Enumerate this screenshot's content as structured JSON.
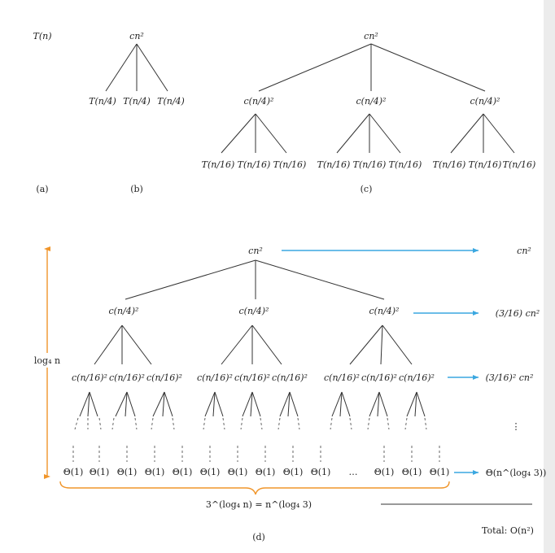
{
  "panel_labels": {
    "a": "(a)",
    "b": "(b)",
    "c": "(c)",
    "d": "(d)"
  },
  "panel_a": {
    "node": "T(n)"
  },
  "panel_b": {
    "root": "cn²",
    "children": [
      "T(n/4)",
      "T(n/4)",
      "T(n/4)"
    ]
  },
  "panel_c": {
    "root": "cn²",
    "level1": [
      "c(n/4)²",
      "c(n/4)²",
      "c(n/4)²"
    ],
    "level2": [
      "T(n/16)",
      "T(n/16)",
      "T(n/16)",
      "T(n/16)",
      "T(n/16)",
      "T(n/16)",
      "T(n/16)",
      "T(n/16)",
      "T(n/16)"
    ]
  },
  "panel_d": {
    "root": "cn²",
    "level1": [
      "c(n/4)²",
      "c(n/4)²",
      "c(n/4)²"
    ],
    "level2": [
      "c(n/16)²",
      "c(n/16)²",
      "c(n/16)²",
      "c(n/16)²",
      "c(n/16)²",
      "c(n/16)²",
      "c(n/16)²",
      "c(n/16)²",
      "c(n/16)²"
    ],
    "leaves": [
      "Θ(1)",
      "Θ(1)",
      "Θ(1)",
      "Θ(1)",
      "Θ(1)",
      "Θ(1)",
      "Θ(1)",
      "Θ(1)",
      "Θ(1)",
      "Θ(1)",
      "Θ(1)",
      "Θ(1)",
      "Θ(1)"
    ],
    "ellipsis": "…",
    "height_label": "log₄ n",
    "leaf_count_label": "3^(log₄ n) = n^(log₄ 3)",
    "level_costs": [
      "cn²",
      "(3/16) cn²",
      "(3/16)² cn²",
      "⋮",
      "Θ(n^(log₄ 3))"
    ],
    "total": "Total: O(n²)"
  },
  "colors": {
    "arrow": "#3aa7e0",
    "brace": "#f0952a",
    "edge": "#333333"
  }
}
